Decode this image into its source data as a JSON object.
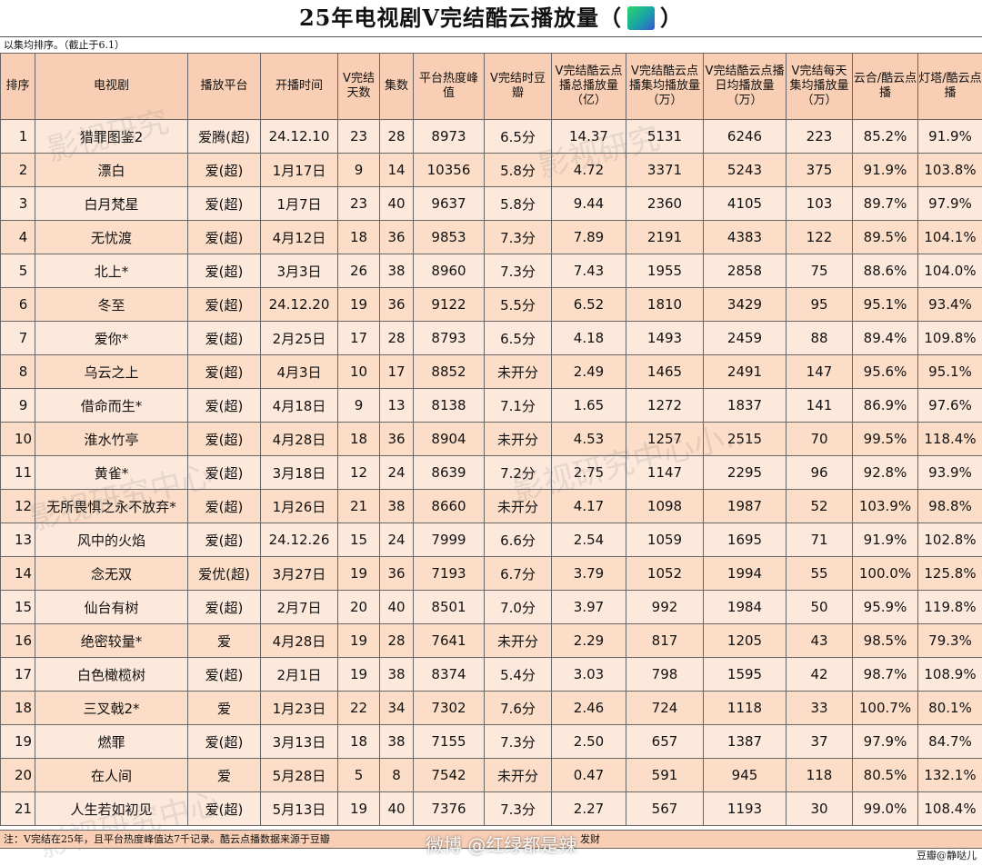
{
  "title": {
    "text_before": "25年电视剧V完结酷云播放量（",
    "text_after": "）",
    "badge_icon": "green-gradient-logo-icon"
  },
  "subtitle": "以集均排序。（截止于6.1）",
  "columns": [
    "排序",
    "电视剧",
    "播放平台",
    "开播时间",
    "V完结天数",
    "集数",
    "平台热度峰值",
    "V完结时豆瓣",
    "V完结酷云点播总播放量（亿）",
    "V完结酷云点播集均播放量（万）",
    "V完结酷云点播日均播放量（万）",
    "V完结每天集均播放量（万）",
    "云合/酷云点播",
    "灯塔/酷云点播"
  ],
  "rows": [
    [
      "1",
      "猎罪图鉴2",
      "爱腾(超)",
      "24.12.10",
      "23",
      "28",
      "8973",
      "6.5分",
      "14.37",
      "5131",
      "6246",
      "223",
      "85.2%",
      "91.9%"
    ],
    [
      "2",
      "漂白",
      "爱(超)",
      "1月17日",
      "9",
      "14",
      "10356",
      "5.8分",
      "4.72",
      "3371",
      "5243",
      "375",
      "91.9%",
      "103.8%"
    ],
    [
      "3",
      "白月梵星",
      "爱(超)",
      "1月7日",
      "23",
      "40",
      "9637",
      "5.8分",
      "9.44",
      "2360",
      "4105",
      "103",
      "89.7%",
      "97.9%"
    ],
    [
      "4",
      "无忧渡",
      "爱(超)",
      "4月12日",
      "18",
      "36",
      "9853",
      "7.3分",
      "7.89",
      "2191",
      "4383",
      "122",
      "89.5%",
      "104.1%"
    ],
    [
      "5",
      "北上*",
      "爱(超)",
      "3月3日",
      "26",
      "38",
      "8960",
      "7.3分",
      "7.43",
      "1955",
      "2858",
      "75",
      "88.6%",
      "104.0%"
    ],
    [
      "6",
      "冬至",
      "爱(超)",
      "24.12.20",
      "19",
      "36",
      "9122",
      "5.5分",
      "6.52",
      "1810",
      "3429",
      "95",
      "95.1%",
      "93.4%"
    ],
    [
      "7",
      "爱你*",
      "爱(超)",
      "2月25日",
      "17",
      "28",
      "8793",
      "6.5分",
      "4.18",
      "1493",
      "2459",
      "88",
      "89.4%",
      "109.8%"
    ],
    [
      "8",
      "乌云之上",
      "爱(超)",
      "4月3日",
      "10",
      "17",
      "8852",
      "未开分",
      "2.49",
      "1465",
      "2491",
      "147",
      "95.6%",
      "95.1%"
    ],
    [
      "9",
      "借命而生*",
      "爱(超)",
      "4月18日",
      "9",
      "13",
      "8138",
      "7.1分",
      "1.65",
      "1272",
      "1837",
      "141",
      "86.9%",
      "97.6%"
    ],
    [
      "10",
      "淮水竹亭",
      "爱(超)",
      "4月28日",
      "18",
      "36",
      "8904",
      "未开分",
      "4.53",
      "1257",
      "2515",
      "70",
      "99.5%",
      "118.4%"
    ],
    [
      "11",
      "黄雀*",
      "爱(超)",
      "3月18日",
      "12",
      "24",
      "8639",
      "7.2分",
      "2.75",
      "1147",
      "2295",
      "96",
      "92.8%",
      "93.9%"
    ],
    [
      "12",
      "无所畏惧之永不放弃*",
      "爱(超)",
      "1月26日",
      "21",
      "38",
      "8660",
      "未开分",
      "4.17",
      "1098",
      "1987",
      "52",
      "103.9%",
      "98.8%"
    ],
    [
      "13",
      "风中的火焰",
      "爱(超)",
      "24.12.26",
      "15",
      "24",
      "7999",
      "6.6分",
      "2.54",
      "1059",
      "1695",
      "71",
      "91.9%",
      "102.8%"
    ],
    [
      "14",
      "念无双",
      "爱优(超)",
      "3月27日",
      "19",
      "36",
      "7193",
      "6.7分",
      "3.79",
      "1052",
      "1994",
      "55",
      "100.0%",
      "125.8%"
    ],
    [
      "15",
      "仙台有树",
      "爱(超)",
      "2月7日",
      "20",
      "40",
      "8501",
      "7.0分",
      "3.97",
      "992",
      "1984",
      "50",
      "95.9%",
      "119.8%"
    ],
    [
      "16",
      "绝密较量*",
      "爱",
      "4月28日",
      "19",
      "28",
      "7641",
      "未开分",
      "2.29",
      "817",
      "1205",
      "43",
      "98.5%",
      "79.3%"
    ],
    [
      "17",
      "白色橄榄树",
      "爱(超)",
      "2月1日",
      "19",
      "38",
      "8374",
      "5.4分",
      "3.03",
      "798",
      "1595",
      "42",
      "98.7%",
      "108.9%"
    ],
    [
      "18",
      "三叉戟2*",
      "爱",
      "1月23日",
      "22",
      "34",
      "7302",
      "7.6分",
      "2.46",
      "724",
      "1118",
      "33",
      "100.7%",
      "80.1%"
    ],
    [
      "19",
      "燃罪",
      "爱(超)",
      "3月13日",
      "18",
      "38",
      "7155",
      "7.3分",
      "2.50",
      "657",
      "1387",
      "37",
      "97.9%",
      "84.7%"
    ],
    [
      "20",
      "在人间",
      "爱",
      "5月28日",
      "5",
      "8",
      "7542",
      "未开分",
      "0.47",
      "591",
      "945",
      "118",
      "80.5%",
      "132.1%"
    ],
    [
      "21",
      "人生若如初见",
      "爱(超)",
      "5月13日",
      "19",
      "40",
      "7376",
      "7.3分",
      "2.27",
      "567",
      "1193",
      "30",
      "99.0%",
      "108.4%"
    ]
  ],
  "footer_note": "注：V完结在25年，且平台热度峰值达7千记录。酷云点播数据来源于豆瓣",
  "footer_tail": "发财",
  "credit": "豆瓣@静哒儿",
  "watermarks": {
    "top_left": "影视研究",
    "mid_left": "影视研究中心",
    "mid_right": "影视研究中心小...",
    "bottom": "影视研究中心",
    "weibo": "微博 @红绿都是辣"
  },
  "colors": {
    "header_bg": "#f8cfb5",
    "row_bg_a": "#fde9dc",
    "row_bg_b": "#fbddc8",
    "badge_gradient": [
      "#2bd46a",
      "#1aa3a8",
      "#3a55d6"
    ]
  }
}
